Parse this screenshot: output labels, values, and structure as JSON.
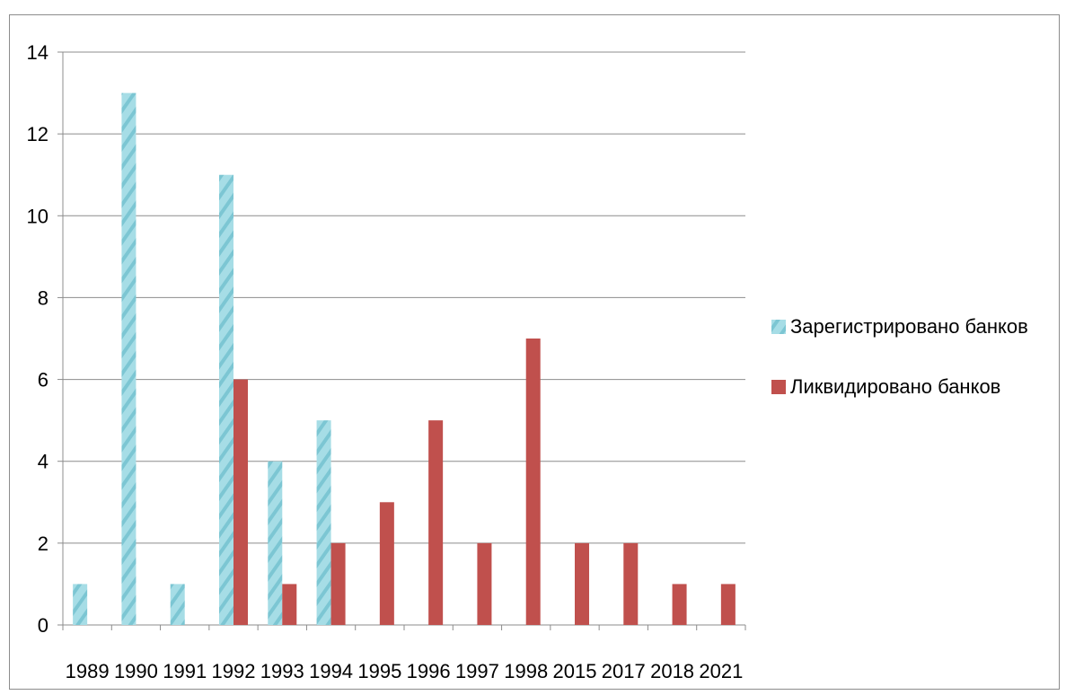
{
  "chart_data": {
    "type": "bar",
    "categories": [
      "1989",
      "1990",
      "1991",
      "1992",
      "1993",
      "1994",
      "1995",
      "1996",
      "1997",
      "1998",
      "2015",
      "2017",
      "2018",
      "2021"
    ],
    "series": [
      {
        "name": "Зарегистрировано банков",
        "values": [
          1,
          13,
          1,
          11,
          4,
          5,
          0,
          0,
          0,
          0,
          0,
          0,
          0,
          0
        ],
        "color": "#8fd3de"
      },
      {
        "name": "Ликвидировано банков",
        "values": [
          0,
          0,
          0,
          6,
          1,
          2,
          3,
          5,
          2,
          7,
          2,
          2,
          1,
          1
        ],
        "color": "#c0504d"
      }
    ],
    "title": "",
    "xlabel": "",
    "ylabel": "",
    "ylim": [
      0,
      14
    ],
    "yticks": [
      0,
      2,
      4,
      6,
      8,
      10,
      12,
      14
    ],
    "grid": true,
    "legend": "right"
  }
}
